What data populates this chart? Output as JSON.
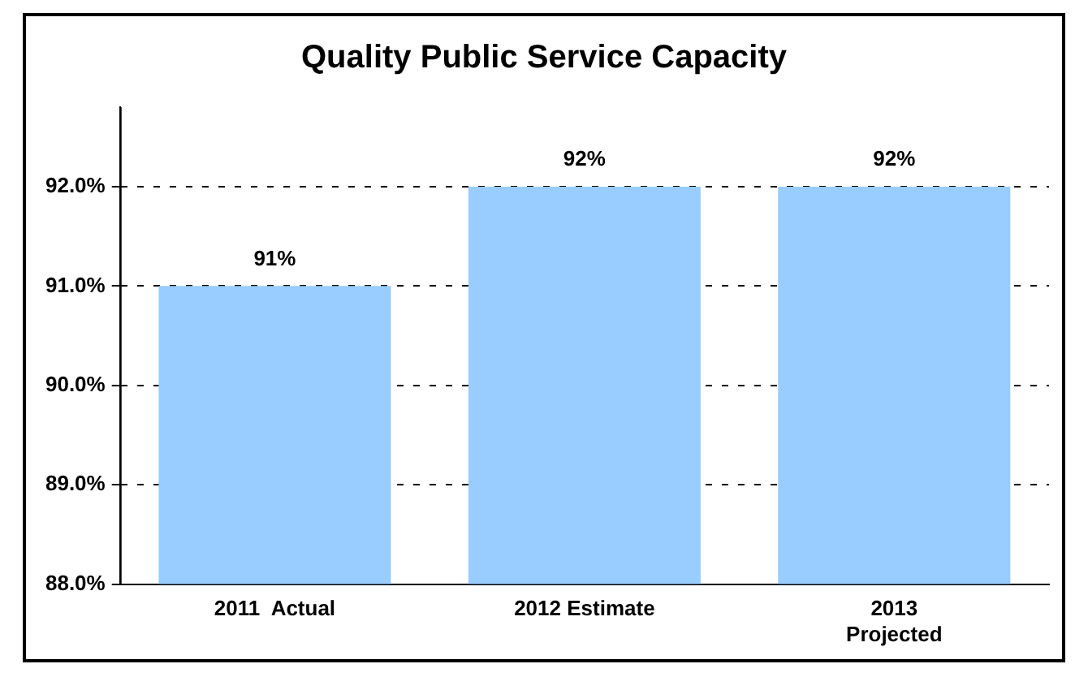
{
  "chart_data": {
    "type": "bar",
    "title": "Quality Public Service Capacity",
    "categories": [
      "2011  Actual",
      "2012 Estimate",
      "2013 Projected"
    ],
    "values": [
      91,
      92,
      92
    ],
    "color": "#99ccff",
    "value_labels": [
      "91%",
      "92%",
      "92%"
    ],
    "ylim": [
      88,
      92.8
    ],
    "yticks": [
      {
        "value": 88,
        "label": "88.0%"
      },
      {
        "value": 89,
        "label": "89.0%"
      },
      {
        "value": 90,
        "label": "90.0%"
      },
      {
        "value": 91,
        "label": "91.0%"
      },
      {
        "value": 92,
        "label": "92.0%"
      }
    ],
    "grid": "y"
  }
}
